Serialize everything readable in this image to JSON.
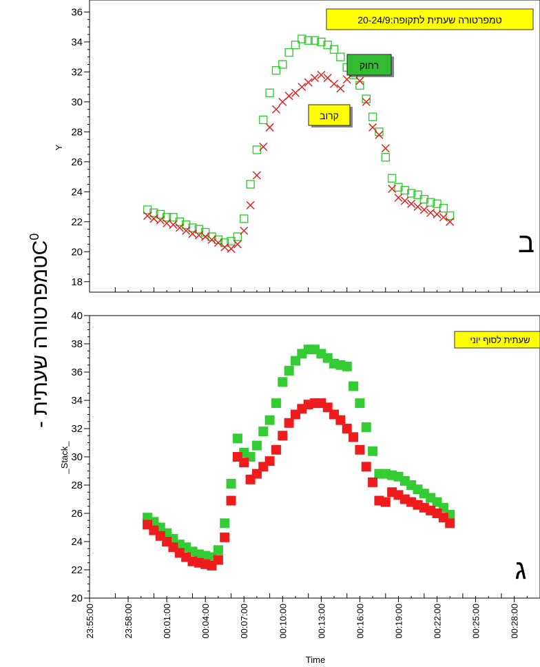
{
  "figure": {
    "ylabel_hebrew": "טמפרטורה שעתית - ",
    "ylabel_unit_base": "C",
    "ylabel_unit_sup": "0",
    "xlabel": "Time"
  },
  "chart_data": [
    {
      "type": "scatter",
      "panel_letter": "ב",
      "title": "טמפרטורה שעתית לתקופה:20-24/9",
      "ylabel": "Y",
      "ylim": [
        17.3,
        36.8
      ],
      "yticks": [
        18,
        20,
        22,
        24,
        26,
        28,
        30,
        32,
        34,
        36
      ],
      "x_unit": "minutes after 00:00",
      "xlim": [
        -5,
        30
      ],
      "grid": false,
      "annotations": [
        "רחוק",
        "קרוב"
      ],
      "series": [
        {
          "name": "רחוק",
          "marker": "open-square",
          "color": "#33cc33",
          "x": [
            -0.5,
            0,
            0.5,
            1,
            1.5,
            2,
            2.5,
            3,
            3.5,
            4,
            4.5,
            5,
            5.5,
            6,
            6.5,
            7,
            7.5,
            8,
            8.5,
            9,
            9.5,
            10,
            10.5,
            11,
            11.5,
            12,
            12.5,
            13,
            13.5,
            14,
            14.5,
            15,
            15.5,
            16,
            16.5,
            17,
            17.5,
            18,
            18.5,
            19,
            19.5,
            20,
            20.5,
            21,
            21.5,
            22,
            22.5,
            23
          ],
          "y": [
            22.8,
            22.6,
            22.5,
            22.3,
            22.3,
            22.0,
            21.8,
            21.6,
            21.5,
            21.3,
            21.0,
            20.8,
            20.6,
            20.7,
            21.0,
            22.2,
            24.5,
            26.8,
            28.8,
            30.6,
            32.1,
            32.5,
            33.3,
            33.8,
            34.2,
            34.1,
            34.1,
            34.0,
            33.8,
            33.5,
            33.0,
            32.3,
            31.8,
            31.1,
            30.2,
            29.0,
            28.0,
            26.3,
            24.9,
            24.3,
            24.1,
            23.9,
            23.8,
            23.5,
            23.3,
            23.2,
            22.9,
            22.4
          ]
        },
        {
          "name": "קרוב",
          "marker": "x",
          "color": "#dd2222",
          "x": [
            -0.5,
            0,
            0.5,
            1,
            1.5,
            2,
            2.5,
            3,
            3.5,
            4,
            4.5,
            5,
            5.5,
            6,
            6.5,
            7,
            7.5,
            8,
            8.5,
            9,
            9.5,
            10,
            10.5,
            11,
            11.5,
            12,
            12.5,
            13,
            13.5,
            14,
            14.5,
            15,
            15.5,
            16,
            16.5,
            17,
            17.5,
            18,
            18.5,
            19,
            19.5,
            20,
            20.5,
            21,
            21.5,
            22,
            22.5,
            23
          ],
          "y": [
            22.4,
            22.2,
            22.1,
            21.9,
            21.8,
            21.6,
            21.4,
            21.2,
            21.1,
            21.0,
            20.8,
            20.6,
            20.3,
            20.2,
            20.5,
            21.4,
            23.1,
            25.1,
            27.0,
            28.3,
            29.5,
            30.0,
            30.4,
            30.6,
            31.0,
            31.3,
            31.6,
            31.8,
            31.6,
            31.2,
            30.9,
            31.5,
            32.0,
            31.4,
            30.0,
            28.3,
            27.8,
            26.9,
            24.2,
            23.6,
            23.4,
            23.2,
            23.0,
            22.8,
            22.6,
            22.5,
            22.3,
            22.0
          ]
        }
      ]
    },
    {
      "type": "scatter",
      "panel_letter": "ג",
      "title": "שעתית לסוף יוני",
      "ylabel": "_Stack_",
      "ylim": [
        20,
        40
      ],
      "yticks": [
        20,
        22,
        24,
        26,
        28,
        30,
        32,
        34,
        36,
        38,
        40
      ],
      "xlabel": "Time",
      "x_unit": "minutes after 00:00",
      "xlim": [
        -5,
        30
      ],
      "xticks": [
        "23:55:00",
        "23:58:00",
        "00:01:00",
        "00:04:00",
        "00:07:00",
        "00:10:00",
        "00:13:00",
        "00:16:00",
        "00:19:00",
        "00:22:00",
        "00:25:00",
        "00:28:00"
      ],
      "grid": false,
      "series": [
        {
          "marker": "filled-square",
          "color": "#33cc33",
          "x": [
            -0.5,
            0,
            0.5,
            1,
            1.5,
            2,
            2.5,
            3,
            3.5,
            4,
            4.5,
            5,
            5.5,
            6,
            6.5,
            7,
            7.5,
            8,
            8.5,
            9,
            9.5,
            10,
            10.5,
            11,
            11.5,
            12,
            12.5,
            13,
            13.5,
            14,
            14.5,
            15,
            15.5,
            16,
            16.5,
            17,
            17.5,
            18,
            18.5,
            19,
            19.5,
            20,
            20.5,
            21,
            21.5,
            22,
            22.5,
            23
          ],
          "y": [
            25.7,
            25.4,
            25.0,
            24.6,
            24.2,
            23.8,
            23.6,
            23.3,
            23.1,
            23.0,
            22.9,
            23.4,
            25.3,
            28.1,
            31.3,
            30.3,
            30.0,
            30.8,
            31.8,
            32.6,
            33.8,
            35.3,
            36.1,
            36.8,
            37.3,
            37.6,
            37.6,
            37.3,
            37.0,
            36.6,
            36.5,
            36.4,
            35.0,
            33.8,
            32.1,
            30.4,
            28.8,
            28.8,
            28.7,
            28.6,
            28.3,
            28.0,
            27.7,
            27.4,
            27.1,
            26.8,
            26.4,
            25.9
          ]
        },
        {
          "marker": "filled-square",
          "color": "#ee1c1c",
          "x": [
            -0.5,
            0,
            0.5,
            1,
            1.5,
            2,
            2.5,
            3,
            3.5,
            4,
            4.5,
            5,
            5.5,
            6,
            6.5,
            7,
            7.5,
            8,
            8.5,
            9,
            9.5,
            10,
            10.5,
            11,
            11.5,
            12,
            12.5,
            13,
            13.5,
            14,
            14.5,
            15,
            15.5,
            16,
            16.5,
            17,
            17.5,
            18,
            18.5,
            19,
            19.5,
            20,
            20.5,
            21,
            21.5,
            22,
            22.5,
            23
          ],
          "y": [
            25.2,
            24.8,
            24.4,
            24.0,
            23.6,
            23.2,
            22.9,
            22.6,
            22.5,
            22.4,
            22.3,
            22.7,
            24.3,
            26.9,
            30.0,
            29.6,
            28.4,
            28.8,
            29.3,
            29.7,
            30.5,
            31.5,
            32.4,
            33.0,
            33.4,
            33.7,
            33.8,
            33.8,
            33.5,
            33.0,
            32.6,
            32.0,
            31.4,
            30.5,
            29.3,
            28.2,
            26.9,
            26.8,
            27.5,
            27.3,
            27.0,
            26.8,
            26.6,
            26.4,
            26.2,
            26.0,
            25.7,
            25.3
          ]
        }
      ]
    }
  ]
}
